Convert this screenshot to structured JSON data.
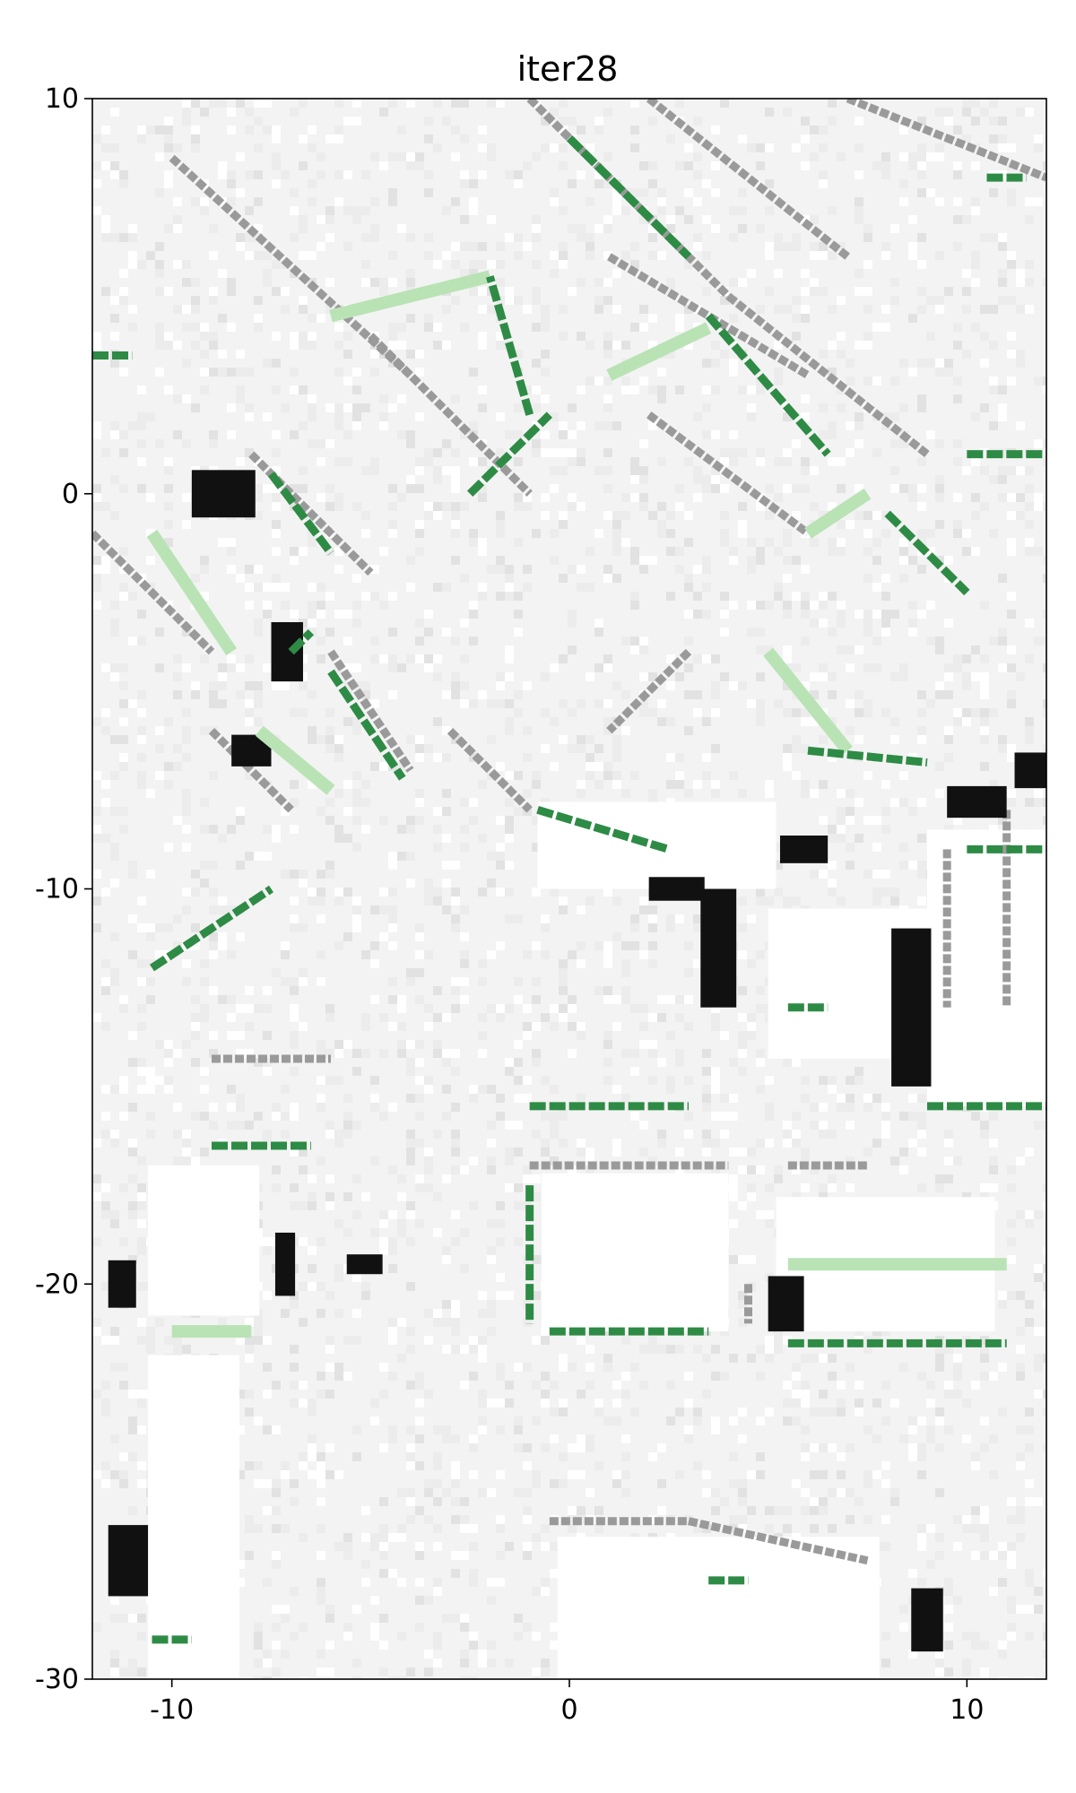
{
  "chart_data": {
    "type": "heatmap",
    "title": "iter28",
    "xlabel": "",
    "ylabel": "",
    "xlim": [
      -12,
      12
    ],
    "ylim": [
      -30,
      10
    ],
    "xticks": [
      {
        "value": -10,
        "label": "-10"
      },
      {
        "value": 0,
        "label": "0"
      },
      {
        "value": 10,
        "label": "10"
      }
    ],
    "yticks": [
      {
        "value": 10,
        "label": "10"
      },
      {
        "value": 0,
        "label": "0"
      },
      {
        "value": -10,
        "label": "-10"
      },
      {
        "value": -20,
        "label": "-20"
      },
      {
        "value": -30,
        "label": "-30"
      }
    ],
    "colors": {
      "background": "#f3f3f3",
      "free": "#ffffff",
      "occupied_light": "#9a9a9a",
      "occupied_dark": "#111111",
      "green_strong": "#2e8b45",
      "green_light": "#b9e3b5"
    },
    "gray_segments": [
      {
        "from": [
          -10,
          8.5
        ],
        "to": [
          -4,
          3
        ]
      },
      {
        "from": [
          -5,
          4
        ],
        "to": [
          -1,
          0
        ]
      },
      {
        "from": [
          -1,
          10
        ],
        "to": [
          4,
          5
        ]
      },
      {
        "from": [
          2,
          10
        ],
        "to": [
          7,
          6
        ]
      },
      {
        "from": [
          1,
          6
        ],
        "to": [
          6,
          3
        ]
      },
      {
        "from": [
          2,
          2
        ],
        "to": [
          6,
          -1
        ]
      },
      {
        "from": [
          4,
          5
        ],
        "to": [
          9,
          1
        ]
      },
      {
        "from": [
          7,
          10
        ],
        "to": [
          12,
          8
        ]
      },
      {
        "from": [
          -12,
          -1
        ],
        "to": [
          -9,
          -4
        ]
      },
      {
        "from": [
          -9,
          -6
        ],
        "to": [
          -7,
          -8
        ]
      },
      {
        "from": [
          -8,
          1
        ],
        "to": [
          -5,
          -2
        ]
      },
      {
        "from": [
          -6,
          -4
        ],
        "to": [
          -4,
          -7
        ]
      },
      {
        "from": [
          -3,
          -6
        ],
        "to": [
          -1,
          -8
        ]
      },
      {
        "from": [
          3,
          -4
        ],
        "to": [
          1,
          -6
        ]
      },
      {
        "from": [
          -9,
          -14.3
        ],
        "to": [
          -6,
          -14.3
        ]
      },
      {
        "from": [
          -1,
          -17
        ],
        "to": [
          4,
          -17
        ]
      },
      {
        "from": [
          5.5,
          -17
        ],
        "to": [
          7.5,
          -17
        ]
      },
      {
        "from": [
          -0.5,
          -26
        ],
        "to": [
          3,
          -26
        ]
      },
      {
        "from": [
          3,
          -26
        ],
        "to": [
          7.5,
          -27
        ]
      },
      {
        "from": [
          4.5,
          -20
        ],
        "to": [
          4.5,
          -21
        ]
      },
      {
        "from": [
          9.5,
          -9
        ],
        "to": [
          9.5,
          -13
        ]
      },
      {
        "from": [
          11,
          -8
        ],
        "to": [
          11,
          -13
        ]
      }
    ],
    "dark_blobs": [
      {
        "x": -9.5,
        "y": 0,
        "w": 1.6,
        "h": 1.2
      },
      {
        "x": -7.5,
        "y": -4,
        "w": 0.8,
        "h": 1.5
      },
      {
        "x": -8.5,
        "y": -6.5,
        "w": 1.0,
        "h": 0.8
      },
      {
        "x": 3.3,
        "y": -11.5,
        "w": 0.9,
        "h": 3.0
      },
      {
        "x": 8.1,
        "y": -13,
        "w": 1.0,
        "h": 4.0
      },
      {
        "x": 11.2,
        "y": -7,
        "w": 1.0,
        "h": 0.9
      },
      {
        "x": 9.5,
        "y": -7.8,
        "w": 1.5,
        "h": 0.8
      },
      {
        "x": 5.0,
        "y": -20.5,
        "w": 0.9,
        "h": 1.4
      },
      {
        "x": -11.6,
        "y": -20,
        "w": 0.7,
        "h": 1.2
      },
      {
        "x": -11.6,
        "y": -27,
        "w": 1.0,
        "h": 1.8
      },
      {
        "x": 8.6,
        "y": -28.5,
        "w": 0.8,
        "h": 1.6
      },
      {
        "x": -7.4,
        "y": -19.5,
        "w": 0.5,
        "h": 1.6
      },
      {
        "x": 5.3,
        "y": -9,
        "w": 1.2,
        "h": 0.7
      },
      {
        "x": 2.0,
        "y": -10,
        "w": 1.4,
        "h": 0.6
      },
      {
        "x": -5.6,
        "y": -19.5,
        "w": 0.9,
        "h": 0.5
      }
    ],
    "free_regions": [
      {
        "x0": -0.7,
        "x1": 4.0,
        "y0": -21.2,
        "y1": -17.2
      },
      {
        "x0": 5.2,
        "x1": 10.7,
        "y0": -21.2,
        "y1": -17.8
      },
      {
        "x0": -0.3,
        "x1": 7.8,
        "y0": -30,
        "y1": -26.4
      },
      {
        "x0": 9.0,
        "x1": 12,
        "y0": -15.5,
        "y1": -8.5
      },
      {
        "x0": -10.6,
        "x1": -8.3,
        "y0": -30,
        "y1": -21.8
      },
      {
        "x0": -10.6,
        "x1": -7.8,
        "y0": -20.8,
        "y1": -17.0
      },
      {
        "x0": 5.0,
        "x1": 9.5,
        "y0": -14.3,
        "y1": -10.5
      },
      {
        "x0": -0.8,
        "x1": 5.2,
        "y0": -10.0,
        "y1": -7.8
      }
    ],
    "green_segments": [
      {
        "from": [
          -2,
          5.5
        ],
        "to": [
          -6,
          4.5
        ],
        "tone": "light"
      },
      {
        "from": [
          -1,
          2
        ],
        "to": [
          -2,
          5.5
        ],
        "tone": "strong"
      },
      {
        "from": [
          -2.5,
          0
        ],
        "to": [
          -0.5,
          2
        ],
        "tone": "strong"
      },
      {
        "from": [
          0,
          9
        ],
        "to": [
          3,
          6
        ],
        "tone": "strong"
      },
      {
        "from": [
          1,
          3
        ],
        "to": [
          3.5,
          4.2
        ],
        "tone": "light"
      },
      {
        "from": [
          3.5,
          4.5
        ],
        "to": [
          6.5,
          1.0
        ],
        "tone": "strong"
      },
      {
        "from": [
          6,
          -1
        ],
        "to": [
          7.5,
          0
        ],
        "tone": "light"
      },
      {
        "from": [
          8,
          -0.5
        ],
        "to": [
          10,
          -2.5
        ],
        "tone": "strong"
      },
      {
        "from": [
          5,
          -4
        ],
        "to": [
          7,
          -6.5
        ],
        "tone": "light"
      },
      {
        "from": [
          6,
          -6.5
        ],
        "to": [
          9,
          -6.8
        ],
        "tone": "strong"
      },
      {
        "from": [
          10,
          -9
        ],
        "to": [
          12,
          -9
        ],
        "tone": "strong"
      },
      {
        "from": [
          10,
          1
        ],
        "to": [
          12,
          1
        ],
        "tone": "strong"
      },
      {
        "from": [
          -10.5,
          -1
        ],
        "to": [
          -8.5,
          -4
        ],
        "tone": "light"
      },
      {
        "from": [
          -7,
          -4
        ],
        "to": [
          -6.5,
          -3.5
        ],
        "tone": "strong"
      },
      {
        "from": [
          -6,
          -4.5
        ],
        "to": [
          -4.2,
          -7.2
        ],
        "tone": "strong"
      },
      {
        "from": [
          -7.5,
          0.5
        ],
        "to": [
          -6,
          -1.5
        ],
        "tone": "strong"
      },
      {
        "from": [
          -7.8,
          -6.0
        ],
        "to": [
          -6.0,
          -7.5
        ],
        "tone": "light"
      },
      {
        "from": [
          -10.5,
          -12
        ],
        "to": [
          -7.5,
          -10
        ],
        "tone": "strong"
      },
      {
        "from": [
          -0.8,
          -8.0
        ],
        "to": [
          2.5,
          -9.0
        ],
        "tone": "strong"
      },
      {
        "from": [
          -1,
          -15.5
        ],
        "to": [
          3,
          -15.5
        ],
        "tone": "strong"
      },
      {
        "from": [
          -1,
          -17.5
        ],
        "to": [
          -1,
          -21
        ],
        "tone": "strong"
      },
      {
        "from": [
          -0.5,
          -21.2
        ],
        "to": [
          3.5,
          -21.2
        ],
        "tone": "strong"
      },
      {
        "from": [
          5.5,
          -19.5
        ],
        "to": [
          11,
          -19.5
        ],
        "tone": "light"
      },
      {
        "from": [
          5.5,
          -21.5
        ],
        "to": [
          11,
          -21.5
        ],
        "tone": "strong"
      },
      {
        "from": [
          9,
          -15.5
        ],
        "to": [
          12,
          -15.5
        ],
        "tone": "strong"
      },
      {
        "from": [
          5.5,
          -13.0
        ],
        "to": [
          6.5,
          -13.0
        ],
        "tone": "strong"
      },
      {
        "from": [
          -9,
          -16.5
        ],
        "to": [
          -6.5,
          -16.5
        ],
        "tone": "strong"
      },
      {
        "from": [
          -10,
          -21.2
        ],
        "to": [
          -8,
          -21.2
        ],
        "tone": "light"
      },
      {
        "from": [
          -10.5,
          -29
        ],
        "to": [
          -9.5,
          -29
        ],
        "tone": "strong"
      },
      {
        "from": [
          3.5,
          -27.5
        ],
        "to": [
          4.5,
          -27.5
        ],
        "tone": "strong"
      },
      {
        "from": [
          -12,
          3.5
        ],
        "to": [
          -11,
          3.5
        ],
        "tone": "strong"
      },
      {
        "from": [
          10.5,
          8
        ],
        "to": [
          11.5,
          8
        ],
        "tone": "strong"
      }
    ]
  }
}
